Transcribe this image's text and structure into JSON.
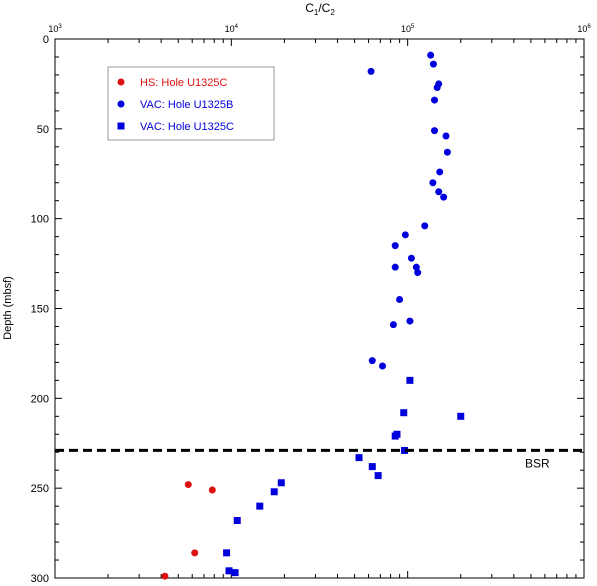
{
  "chart_data": {
    "type": "scatter",
    "title": "",
    "xlabel_main": "C",
    "xlabel_sub1": "1",
    "xlabel_slash": "/C",
    "xlabel_sub2": "2",
    "ylabel": "Depth (mbsf)",
    "x_scale": "log",
    "xlim": [
      1000,
      1000000
    ],
    "ylim": [
      0,
      300
    ],
    "y_inverted": true,
    "x_ticks": [
      {
        "base": "10",
        "exp": "3",
        "value": 1000
      },
      {
        "base": "10",
        "exp": "4",
        "value": 10000
      },
      {
        "base": "10",
        "exp": "5",
        "value": 100000
      },
      {
        "base": "10",
        "exp": "6",
        "value": 1000000
      }
    ],
    "y_ticks": [
      "0",
      "50",
      "100",
      "150",
      "200",
      "250",
      "300"
    ],
    "y_tick_values": [
      0,
      50,
      100,
      150,
      200,
      250,
      300
    ],
    "legend_position": "top-left",
    "reference_line": {
      "label": "BSR",
      "y": 229,
      "style": "dashed",
      "color": "#000000"
    },
    "series": [
      {
        "name": "HS: Hole U1325C",
        "marker": "circle",
        "color": "#dd1111",
        "points": [
          [
            5700,
            248
          ],
          [
            7800,
            251
          ],
          [
            6200,
            286
          ],
          [
            4200,
            299
          ]
        ]
      },
      {
        "name": "VAC: Hole U1325B",
        "marker": "circle",
        "color": "#0000dd",
        "points": [
          [
            62000,
            18
          ],
          [
            135000,
            9
          ],
          [
            140000,
            14
          ],
          [
            150000,
            25
          ],
          [
            147000,
            27
          ],
          [
            142000,
            34
          ],
          [
            142000,
            51
          ],
          [
            165000,
            54
          ],
          [
            168000,
            63
          ],
          [
            152000,
            74
          ],
          [
            139000,
            80
          ],
          [
            150000,
            85
          ],
          [
            160000,
            88
          ],
          [
            125000,
            104
          ],
          [
            97000,
            109
          ],
          [
            85000,
            115
          ],
          [
            105000,
            122
          ],
          [
            85000,
            127
          ],
          [
            112000,
            127
          ],
          [
            114000,
            130
          ],
          [
            90000,
            145
          ],
          [
            103000,
            157
          ],
          [
            83000,
            159
          ],
          [
            63000,
            179
          ],
          [
            72000,
            182
          ]
        ]
      },
      {
        "name": "VAC: Hole U1325C",
        "marker": "square",
        "color": "#0000dd",
        "points": [
          [
            103000,
            190
          ],
          [
            200000,
            210
          ],
          [
            95000,
            208
          ],
          [
            87000,
            220
          ],
          [
            85000,
            221
          ],
          [
            96000,
            229
          ],
          [
            53000,
            233
          ],
          [
            63000,
            238
          ],
          [
            68000,
            243
          ],
          [
            19200,
            247
          ],
          [
            17500,
            252
          ],
          [
            14500,
            260
          ],
          [
            10800,
            268
          ],
          [
            9400,
            286
          ],
          [
            9700,
            296
          ],
          [
            10500,
            297
          ]
        ]
      }
    ]
  }
}
